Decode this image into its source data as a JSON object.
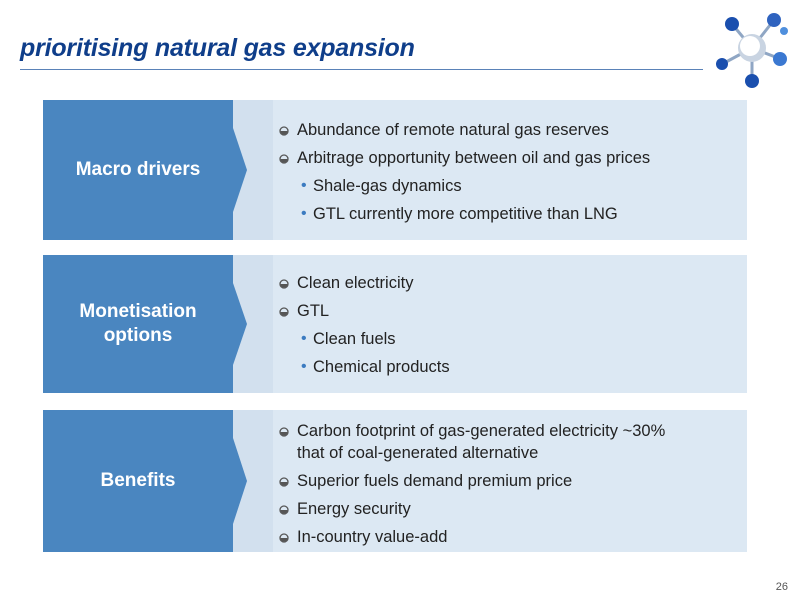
{
  "slide": {
    "title": "prioritising natural gas expansion",
    "page_number": "26"
  },
  "rows": [
    {
      "label_lines": [
        "Macro drivers"
      ],
      "items": [
        {
          "text": "Abundance of remote natural gas reserves",
          "level": 1
        },
        {
          "text": "Arbitrage opportunity between oil and gas prices",
          "level": 1
        },
        {
          "text": "Shale-gas dynamics",
          "level": 2
        },
        {
          "text": "GTL currently more competitive than LNG",
          "level": 2
        }
      ]
    },
    {
      "label_lines": [
        "Monetisation",
        "options"
      ],
      "items": [
        {
          "text": "Clean electricity",
          "level": 1
        },
        {
          "text": "GTL",
          "level": 1
        },
        {
          "text": "Clean fuels",
          "level": 2
        },
        {
          "text": "Chemical products",
          "level": 2
        }
      ]
    },
    {
      "label_lines": [
        "Benefits"
      ],
      "items": [
        {
          "text_lines": [
            "Carbon footprint of gas-generated electricity ~30%",
            "that of coal-generated alternative"
          ],
          "level": 1
        },
        {
          "text": "Superior fuels demand premium price",
          "level": 1
        },
        {
          "text": "Energy security",
          "level": 1
        },
        {
          "text": "In-country value-add",
          "level": 1
        }
      ]
    }
  ],
  "colors": {
    "title": "#0f3e8a",
    "label_bg": "#4a86c0",
    "content_bg": "#dce8f3",
    "sub_bullet": "#3b7bc0"
  },
  "icons": {
    "logo": "molecule-logo-icon",
    "bullet": "round-bullet-icon"
  }
}
